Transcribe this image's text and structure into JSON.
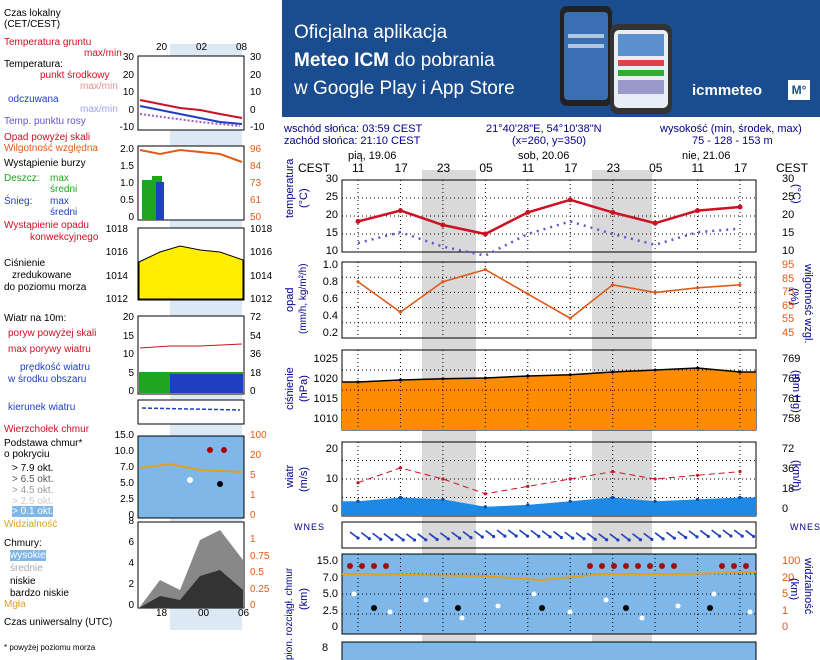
{
  "banner": {
    "line1": "Oficjalna aplikacja",
    "line2_bold": "Meteo ICM",
    "line2_rest": " do pobrania",
    "line3": "w Google Play i App Store",
    "brand": "icmmeteo",
    "brand_badge": "M°"
  },
  "info": {
    "sunrise": "wschód słońca: 03:59 CEST",
    "sunset": "zachód słońca: 21:10 CEST",
    "coords": "21°40'28\"E, 54°10'38\"N",
    "grid": "(x=260,  y=350)",
    "height_title": "wysokość (min, środek, max)",
    "height_values": "75 - 128 - 153 m"
  },
  "legend": {
    "local_time": "Czas lokalny",
    "local_time_2": "(CET/CEST)",
    "local_ticks": [
      "20",
      "02",
      "08"
    ],
    "ground_temp": "Temperatura gruntu",
    "ground_temp_2": "max/min",
    "temp": "Temperatura:",
    "temp_mid": "punkt środkowy",
    "temp_mid_2": "max/min",
    "feels": "odczuwana",
    "feels_2": "max/min",
    "dew": "Temp. punktu rosy",
    "precip_over": "Opad powyżej skali",
    "humidity": "Wilgotność względna",
    "storm": "Wystąpienie burzy",
    "rain": "Deszcz:",
    "rain_max": "max",
    "rain_avg": "średni",
    "snow": "Śnieg:",
    "snow_max": "max",
    "snow_avg": "średni",
    "conv": "Wystąpienie opadu",
    "conv_2": "konwekcyjnego",
    "pressure": "Ciśnienie",
    "pressure_2": "zredukowane",
    "pressure_3": "do poziomu morza",
    "wind_10m": "Wiatr na 10m:",
    "gusts_over": "poryw powyżej skali",
    "gust_max": "max porywy wiatru",
    "wind_avg": "prędkość wiatru",
    "wind_avg_2": "w środku obszaru",
    "wind_dir": "kierunek wiatru",
    "cloud_top": "Wierzchołek chmur",
    "cloud_base": "Podstawa chmur*",
    "cloud_base_2": "o pokryciu",
    "okt1": "> 7.9 okt.",
    "okt2": "> 6.5 okt.",
    "okt3": "> 4.5 okt.",
    "okt4": "> 2.5 okt.",
    "okt5": "> 0.1 okt.",
    "visibility": "Widzialność",
    "clouds": "Chmury:",
    "high": "wysokie",
    "mid": "średnie",
    "low": "niskie",
    "very_low": "bardzo niskie",
    "fog": "Mgła",
    "utc": "Czas uniwersalny (UTC)",
    "utc_ticks": [
      "18",
      "00",
      "06"
    ],
    "footnote": "* powyżej poziomu morza",
    "t_left": [
      "30",
      "20",
      "10",
      "0",
      "-10"
    ],
    "t_right": [
      "30",
      "20",
      "10",
      "0",
      "-10"
    ],
    "p_left": [
      "2.0",
      "1.5",
      "1.0",
      "0.5",
      "0"
    ],
    "h_right": [
      "96",
      "84",
      "73",
      "61",
      "50"
    ],
    "pr_left": [
      "1018",
      "1016",
      "1014",
      "1012"
    ],
    "pr_right": [
      "1018",
      "1016",
      "1014",
      "1012"
    ],
    "w_left": [
      "20",
      "15",
      "10",
      "5",
      "0"
    ],
    "w_right": [
      "72",
      "54",
      "36",
      "18",
      "0"
    ],
    "cb_left": [
      "15.0",
      "10.0",
      "7.0",
      "5.0",
      "2.5",
      "0"
    ],
    "cb_right": [
      "100",
      "20",
      "5",
      "1",
      "0"
    ],
    "cl_left": [
      "8",
      "6",
      "4",
      "2",
      "0"
    ],
    "cl_right": [
      "1",
      "0.75",
      "0.5",
      "0.25",
      "0"
    ]
  },
  "main": {
    "days": [
      "pią, 19.06",
      "sob, 20.06",
      "nie, 21.06"
    ],
    "hours": [
      "11",
      "17",
      "23",
      "05",
      "11",
      "17",
      "23",
      "05",
      "11",
      "17"
    ],
    "cest": "CEST",
    "temp_label": "temperatura",
    "temp_unit": "(°C)",
    "temp_ticks": [
      "30",
      "25",
      "20",
      "15",
      "10"
    ],
    "precip_label": "opad",
    "precip_unit": "(mm/h, kg/m²/h)",
    "precip_ticks": [
      "1.0",
      "0.8",
      "0.6",
      "0.4",
      "0.2"
    ],
    "hum_label": "wilgotność wzgl.",
    "hum_unit": "(%)",
    "hum_ticks": [
      "95",
      "85",
      "75",
      "65",
      "55",
      "45"
    ],
    "pres_label": "ciśnienie",
    "pres_unit": "(hPa)",
    "pres_ticks": [
      "1025",
      "1020",
      "1015",
      "1010"
    ],
    "presmm_unit": "(mm Hg)",
    "presmm_ticks": [
      "769",
      "765",
      "761",
      "758"
    ],
    "wind_label": "wiatr",
    "wind_unit": "(m/s)",
    "wind_ticks": [
      "20",
      "10",
      "0"
    ],
    "windk_unit": "(km/h)",
    "windk_ticks": [
      "72",
      "36",
      "18",
      "0"
    ],
    "dir_letters": "WNES",
    "cloud_label": "pion. rozciągł. chmur",
    "cloud_unit": "(km)",
    "cloud_ticks": [
      "15.0",
      "7.0",
      "5.0",
      "2.5",
      "0"
    ],
    "vis_label": "widzialność",
    "vis_unit": "(km)",
    "vis_ticks": [
      "100",
      "20",
      "5",
      "1",
      "0"
    ],
    "bottom_tick": "8",
    "bottom_label": "e"
  },
  "colors": {
    "banner": "#1a4d8f",
    "temp": "#cc1122",
    "humidity": "#e05a1a",
    "pressure_fill": "#ff8c00",
    "pressure_legend": "#ffee00",
    "wind_fill": "#1e88e5",
    "sky": "#7fb8e8",
    "night": "#d9d9d9"
  },
  "chart_data": [
    {
      "type": "line",
      "title": "temperatura",
      "ylabel": "(°C)",
      "ylim": [
        10,
        30
      ],
      "x": [
        "11",
        "17",
        "23",
        "05",
        "11",
        "17",
        "23",
        "05",
        "11",
        "17"
      ],
      "series": [
        {
          "name": "temperatura",
          "values": [
            18.5,
            21.5,
            17.5,
            15,
            21,
            24.5,
            21,
            18,
            21.5,
            22.5
          ]
        }
      ]
    },
    {
      "type": "line",
      "title": "wilgotność wzgl.",
      "ylabel": "(%)",
      "ylim": [
        45,
        95
      ],
      "x": [
        "11",
        "17",
        "23",
        "05",
        "11",
        "17",
        "23",
        "05",
        "11",
        "17"
      ],
      "series": [
        {
          "name": "wilgotność wzgl.",
          "values": [
            82,
            62,
            82,
            90,
            74,
            58,
            80,
            75,
            78,
            80
          ]
        }
      ]
    },
    {
      "type": "area",
      "title": "ciśnienie",
      "ylabel": "(hPa)",
      "ylim": [
        1008,
        1028
      ],
      "x": [
        "11",
        "17",
        "23",
        "05",
        "11",
        "17",
        "23",
        "05",
        "11",
        "17"
      ],
      "series": [
        {
          "name": "ciśnienie",
          "values": [
            1020,
            1020.5,
            1020.8,
            1021,
            1021.5,
            1021.8,
            1022.5,
            1023,
            1023.5,
            1022.5
          ]
        }
      ]
    },
    {
      "type": "area",
      "title": "wiatr",
      "ylabel": "(m/s)",
      "ylim": [
        0,
        20
      ],
      "x": [
        "11",
        "17",
        "23",
        "05",
        "11",
        "17",
        "23",
        "05",
        "11",
        "17"
      ],
      "series": [
        {
          "name": "wiatr",
          "values": [
            4,
            5,
            4.5,
            2.5,
            3,
            4,
            5,
            4,
            4.5,
            5
          ]
        },
        {
          "name": "porywy",
          "values": [
            9,
            13,
            10,
            6,
            8,
            10,
            12,
            10,
            11,
            12
          ]
        }
      ]
    }
  ]
}
